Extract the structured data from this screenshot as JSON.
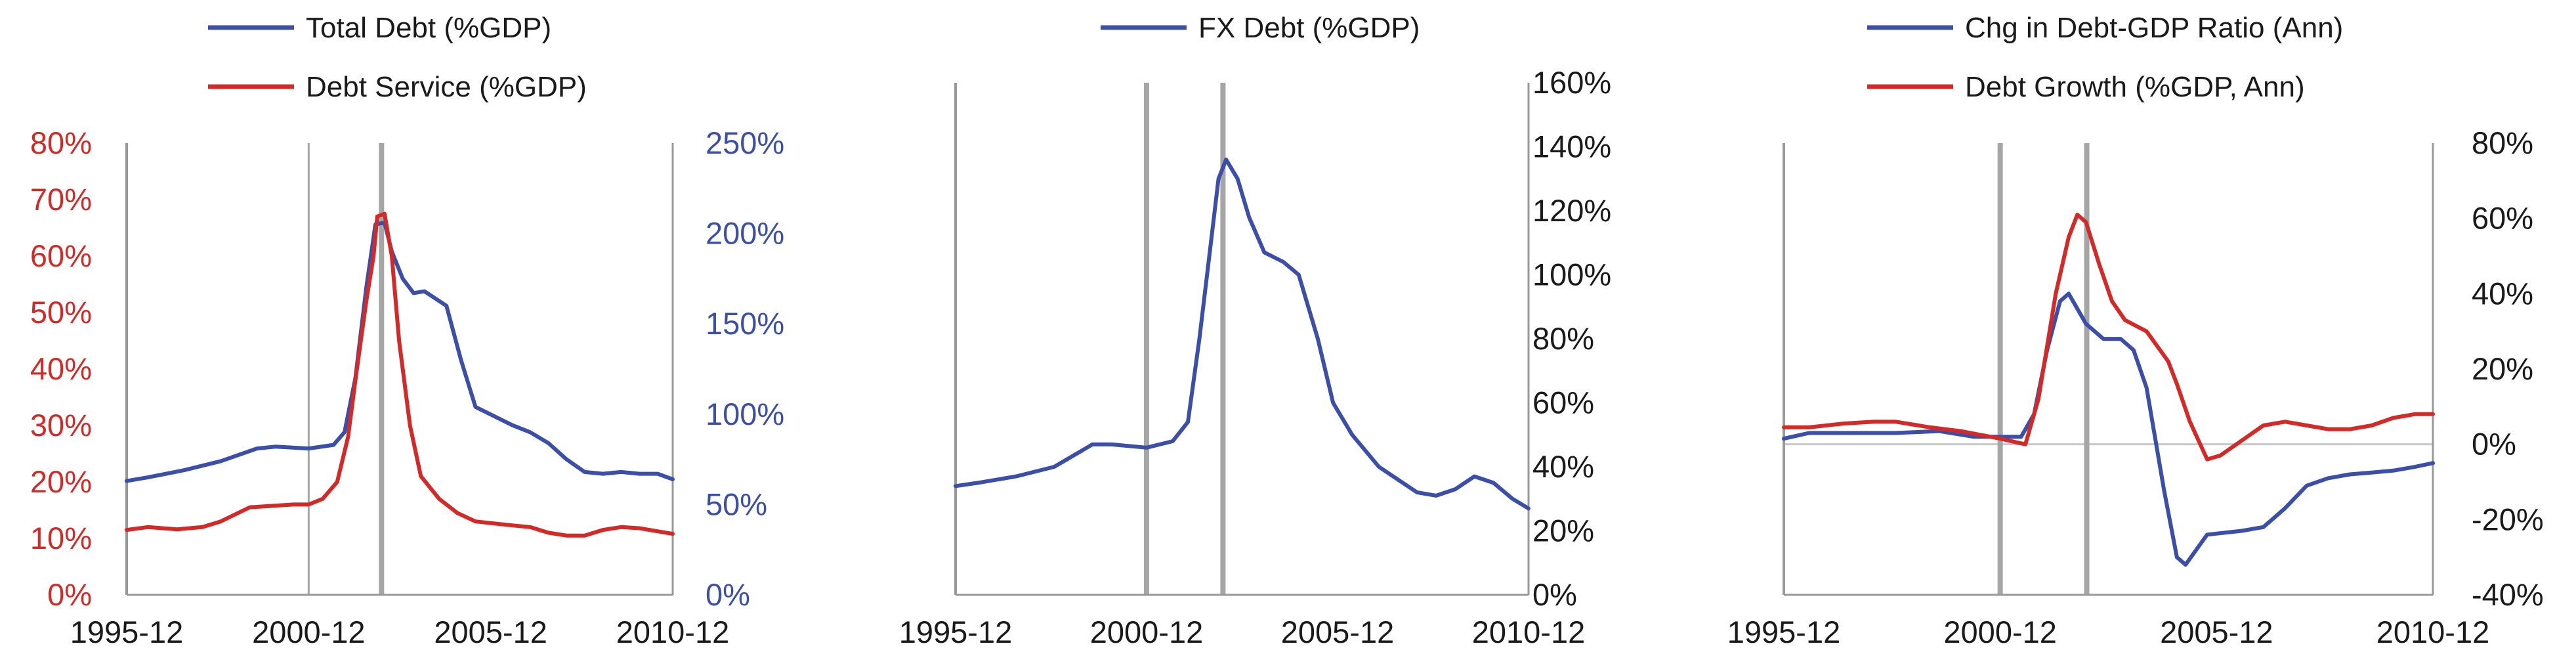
{
  "colors": {
    "blue": "#3b4fa8",
    "red": "#d42a27",
    "axis": "#999999",
    "text": "#1a1a1a",
    "vline": "#a6a6a6"
  },
  "x_ticks": [
    "1995-12",
    "2000-12",
    "2005-12",
    "2010-12"
  ],
  "chart_data": [
    {
      "type": "line",
      "legend": [
        "Total Debt (%GDP)",
        "Debt Service (%GDP)"
      ],
      "x_range": [
        1995.917,
        2010.917
      ],
      "x_ticks": [
        "1995-12",
        "2000-12",
        "2005-12",
        "2010-12"
      ],
      "vertical_lines": [
        2000.917,
        2002.917
      ],
      "left_axis": {
        "ticks": [
          "0%",
          "10%",
          "20%",
          "30%",
          "40%",
          "50%",
          "60%",
          "70%",
          "80%"
        ],
        "ylim": [
          0,
          80
        ],
        "color": "red"
      },
      "right_axis": {
        "ticks": [
          "0%",
          "50%",
          "100%",
          "150%",
          "200%",
          "250%"
        ],
        "ylim": [
          0,
          250
        ],
        "color": "blue"
      },
      "series": [
        {
          "name": "Total Debt (%GDP)",
          "color": "blue",
          "axis": "right",
          "points": [
            [
              1995.917,
              63
            ],
            [
              1996.5,
              65
            ],
            [
              1997.5,
              69
            ],
            [
              1998.5,
              74
            ],
            [
              1999.5,
              81
            ],
            [
              2000,
              82
            ],
            [
              2000.917,
              81
            ],
            [
              2001.6,
              83
            ],
            [
              2001.9,
              90
            ],
            [
              2002.2,
              120
            ],
            [
              2002.5,
              170
            ],
            [
              2002.75,
              205
            ],
            [
              2003.0,
              206
            ],
            [
              2003.2,
              190
            ],
            [
              2003.5,
              175
            ],
            [
              2003.8,
              167
            ],
            [
              2004.1,
              168
            ],
            [
              2004.7,
              160
            ],
            [
              2005.1,
              130
            ],
            [
              2005.5,
              104
            ],
            [
              2006,
              99
            ],
            [
              2006.5,
              94
            ],
            [
              2007,
              90
            ],
            [
              2007.5,
              84
            ],
            [
              2008,
              75
            ],
            [
              2008.5,
              68
            ],
            [
              2009,
              67
            ],
            [
              2009.5,
              68
            ],
            [
              2010,
              67
            ],
            [
              2010.5,
              67
            ],
            [
              2010.917,
              64
            ]
          ]
        },
        {
          "name": "Debt Service (%GDP)",
          "color": "red",
          "axis": "left",
          "points": [
            [
              1995.917,
              11.5
            ],
            [
              1996.5,
              12
            ],
            [
              1997.3,
              11.6
            ],
            [
              1998,
              12
            ],
            [
              1998.5,
              13
            ],
            [
              1999.3,
              15.5
            ],
            [
              2000.5,
              16
            ],
            [
              2000.917,
              16
            ],
            [
              2001.3,
              17
            ],
            [
              2001.7,
              20
            ],
            [
              2002,
              28
            ],
            [
              2002.2,
              38
            ],
            [
              2002.5,
              52
            ],
            [
              2002.7,
              60
            ],
            [
              2002.8,
              67
            ],
            [
              2003.0,
              67.5
            ],
            [
              2003.2,
              60
            ],
            [
              2003.4,
              45
            ],
            [
              2003.7,
              30
            ],
            [
              2004,
              21
            ],
            [
              2004.5,
              17
            ],
            [
              2005,
              14.5
            ],
            [
              2005.5,
              13
            ],
            [
              2006.5,
              12.3
            ],
            [
              2007,
              12
            ],
            [
              2007.5,
              11
            ],
            [
              2008,
              10.5
            ],
            [
              2008.5,
              10.5
            ],
            [
              2009,
              11.5
            ],
            [
              2009.5,
              12
            ],
            [
              2010,
              11.8
            ],
            [
              2010.917,
              10.8
            ]
          ]
        }
      ]
    },
    {
      "type": "line",
      "legend": [
        "FX Debt (%GDP)"
      ],
      "x_range": [
        1995.917,
        2010.917
      ],
      "x_ticks": [
        "1995-12",
        "2000-12",
        "2005-12",
        "2010-12"
      ],
      "vertical_lines": [
        2000.917,
        2002.917
      ],
      "right_axis": {
        "ticks": [
          "0%",
          "20%",
          "40%",
          "60%",
          "80%",
          "100%",
          "120%",
          "140%",
          "160%"
        ],
        "ylim": [
          0,
          160
        ],
        "color": "text"
      },
      "series": [
        {
          "name": "FX Debt (%GDP)",
          "color": "blue",
          "axis": "right",
          "points": [
            [
              1995.917,
              34
            ],
            [
              1996.5,
              35
            ],
            [
              1997.5,
              37
            ],
            [
              1998.5,
              40
            ],
            [
              1999.5,
              47
            ],
            [
              2000,
              47
            ],
            [
              2000.917,
              46
            ],
            [
              2001.6,
              48
            ],
            [
              2002.0,
              54
            ],
            [
              2002.3,
              80
            ],
            [
              2002.6,
              110
            ],
            [
              2002.8,
              130
            ],
            [
              2003.0,
              136
            ],
            [
              2003.3,
              130
            ],
            [
              2003.6,
              118
            ],
            [
              2004,
              107
            ],
            [
              2004.5,
              104
            ],
            [
              2004.9,
              100
            ],
            [
              2005.4,
              80
            ],
            [
              2005.8,
              60
            ],
            [
              2006.3,
              50
            ],
            [
              2007,
              40
            ],
            [
              2007.5,
              36
            ],
            [
              2008,
              32
            ],
            [
              2008.5,
              31
            ],
            [
              2009,
              33
            ],
            [
              2009.5,
              37
            ],
            [
              2010,
              35
            ],
            [
              2010.5,
              30
            ],
            [
              2010.917,
              27
            ]
          ]
        }
      ]
    },
    {
      "type": "line",
      "legend": [
        "Chg in Debt-GDP Ratio (Ann)",
        "Debt Growth (%GDP, Ann)"
      ],
      "x_range": [
        1995.917,
        2010.917
      ],
      "x_ticks": [
        "1995-12",
        "2000-12",
        "2005-12",
        "2010-12"
      ],
      "vertical_lines": [
        2000.917,
        2002.917
      ],
      "right_axis": {
        "ticks": [
          "-40%",
          "-20%",
          "0%",
          "20%",
          "40%",
          "60%",
          "80%"
        ],
        "ylim": [
          -40,
          80
        ],
        "color": "text"
      },
      "series": [
        {
          "name": "Chg in Debt-GDP Ratio (Ann)",
          "color": "blue",
          "axis": "right",
          "points": [
            [
              1995.917,
              1.5
            ],
            [
              1996.5,
              3
            ],
            [
              1997.5,
              3
            ],
            [
              1998.5,
              3
            ],
            [
              1999.5,
              3.5
            ],
            [
              2000.3,
              2
            ],
            [
              2000.917,
              2
            ],
            [
              2001.4,
              2
            ],
            [
              2001.7,
              8
            ],
            [
              2002,
              25
            ],
            [
              2002.3,
              38
            ],
            [
              2002.5,
              40
            ],
            [
              2002.9,
              32
            ],
            [
              2003.3,
              28
            ],
            [
              2003.7,
              28
            ],
            [
              2004,
              25
            ],
            [
              2004.3,
              15
            ],
            [
              2004.7,
              -12
            ],
            [
              2005,
              -30
            ],
            [
              2005.2,
              -32
            ],
            [
              2005.7,
              -24
            ],
            [
              2006.5,
              -23
            ],
            [
              2007,
              -22
            ],
            [
              2007.5,
              -17
            ],
            [
              2008,
              -11
            ],
            [
              2008.5,
              -9
            ],
            [
              2009,
              -8
            ],
            [
              2009.5,
              -7.5
            ],
            [
              2010,
              -7
            ],
            [
              2010.5,
              -6
            ],
            [
              2010.917,
              -5
            ]
          ]
        },
        {
          "name": "Debt Growth (%GDP, Ann)",
          "color": "red",
          "axis": "right",
          "points": [
            [
              1995.917,
              4.5
            ],
            [
              1996.5,
              4.5
            ],
            [
              1997.3,
              5.5
            ],
            [
              1998,
              6
            ],
            [
              1998.5,
              6
            ],
            [
              1999.3,
              4.5
            ],
            [
              2000,
              3.5
            ],
            [
              2000.917,
              1.5
            ],
            [
              2001.3,
              0.5
            ],
            [
              2001.5,
              0
            ],
            [
              2001.8,
              12
            ],
            [
              2002.2,
              40
            ],
            [
              2002.5,
              55
            ],
            [
              2002.7,
              61
            ],
            [
              2002.9,
              59
            ],
            [
              2003.2,
              48
            ],
            [
              2003.5,
              38
            ],
            [
              2003.8,
              33
            ],
            [
              2004.3,
              30
            ],
            [
              2004.8,
              22
            ],
            [
              2005,
              16
            ],
            [
              2005.3,
              6
            ],
            [
              2005.7,
              -4
            ],
            [
              2006,
              -3
            ],
            [
              2006.5,
              1
            ],
            [
              2007,
              5
            ],
            [
              2007.5,
              6
            ],
            [
              2008,
              5
            ],
            [
              2008.5,
              4
            ],
            [
              2009,
              4
            ],
            [
              2009.5,
              5
            ],
            [
              2010,
              7
            ],
            [
              2010.5,
              8
            ],
            [
              2010.917,
              8
            ]
          ]
        }
      ]
    }
  ]
}
